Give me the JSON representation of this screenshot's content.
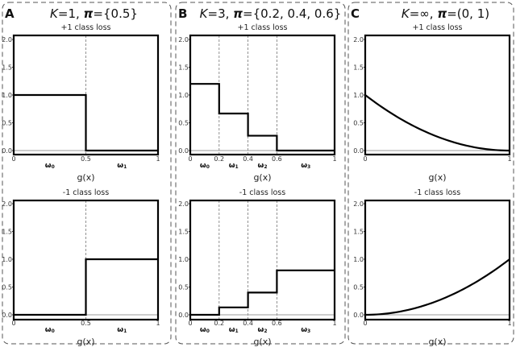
{
  "chart_data": [
    {
      "type": "line",
      "panel_label": "A",
      "title_parts": [
        {
          "t": "K",
          "i": true
        },
        {
          "t": "=1, ",
          "i": false
        },
        {
          "t": "π",
          "i": true,
          "b": true
        },
        {
          "t": "={0.5}",
          "i": false
        }
      ],
      "xlabel": "g(x)",
      "xlim": [
        0,
        1
      ],
      "ylim": [
        0,
        2
      ],
      "yticks": [
        "0.0",
        "0.5",
        "1.0",
        "1.5",
        "2.0"
      ],
      "xticks": [
        {
          "v": 0,
          "l": "0"
        },
        {
          "v": 0.5,
          "l": "0.5"
        },
        {
          "v": 1,
          "l": "1"
        }
      ],
      "thresholds": [
        0.5
      ],
      "omegas": [
        {
          "l": "ω",
          "s": "0",
          "v": 0.25
        },
        {
          "l": "ω",
          "s": "1",
          "v": 0.75
        }
      ],
      "subplots": [
        {
          "title": "+1 class loss",
          "kind": "step",
          "edges": [
            0,
            0.5,
            1
          ],
          "values": [
            1.0,
            0.0
          ]
        },
        {
          "title": "-1 class loss",
          "kind": "step",
          "edges": [
            0,
            0.5,
            1
          ],
          "values": [
            0.0,
            1.0
          ]
        }
      ]
    },
    {
      "type": "line",
      "panel_label": "B",
      "title_parts": [
        {
          "t": "K",
          "i": true
        },
        {
          "t": "=3, ",
          "i": false
        },
        {
          "t": "π",
          "i": true,
          "b": true
        },
        {
          "t": "={0.2, 0.4, 0.6}",
          "i": false
        }
      ],
      "xlabel": "g(x)",
      "xlim": [
        0,
        1
      ],
      "ylim": [
        0,
        2
      ],
      "yticks": [
        "0.0",
        "0.5",
        "1.0",
        "1.5",
        "2.0"
      ],
      "xticks": [
        {
          "v": 0,
          "l": "0"
        },
        {
          "v": 0.2,
          "l": "0.2"
        },
        {
          "v": 0.4,
          "l": "0.4"
        },
        {
          "v": 0.6,
          "l": "0.6"
        },
        {
          "v": 1,
          "l": "1"
        }
      ],
      "thresholds": [
        0.2,
        0.4,
        0.6
      ],
      "omegas": [
        {
          "l": "ω",
          "s": "0",
          "v": 0.1
        },
        {
          "l": "ω",
          "s": "1",
          "v": 0.3
        },
        {
          "l": "ω",
          "s": "2",
          "v": 0.5
        },
        {
          "l": "ω",
          "s": "3",
          "v": 0.8
        }
      ],
      "subplots": [
        {
          "title": "+1 class loss",
          "kind": "step",
          "edges": [
            0,
            0.2,
            0.4,
            0.6,
            1
          ],
          "values": [
            1.2,
            0.667,
            0.267,
            0.0
          ]
        },
        {
          "title": "-1 class loss",
          "kind": "step",
          "edges": [
            0,
            0.2,
            0.4,
            0.6,
            1
          ],
          "values": [
            0.0,
            0.133,
            0.4,
            0.8
          ]
        }
      ]
    },
    {
      "type": "line",
      "panel_label": "C",
      "title_parts": [
        {
          "t": "K",
          "i": true
        },
        {
          "t": "=∞, ",
          "i": false
        },
        {
          "t": "π",
          "i": true,
          "b": true
        },
        {
          "t": "=(0, 1)",
          "i": false
        }
      ],
      "xlabel": "g(x)",
      "xlim": [
        0,
        1
      ],
      "ylim": [
        0,
        2
      ],
      "yticks": [
        "0.0",
        "0.5",
        "1.0",
        "1.5",
        "2.0"
      ],
      "xticks": [
        {
          "v": 0,
          "l": "0"
        },
        {
          "v": 1,
          "l": "1"
        }
      ],
      "thresholds": [],
      "omegas": [],
      "subplots": [
        {
          "title": "+1 class loss",
          "kind": "curve",
          "x": [
            0,
            0.1,
            0.2,
            0.3,
            0.4,
            0.5,
            0.6,
            0.7,
            0.8,
            0.9,
            1
          ],
          "y": [
            1,
            0.81,
            0.64,
            0.49,
            0.36,
            0.25,
            0.16,
            0.09,
            0.04,
            0.01,
            0
          ]
        },
        {
          "title": "-1 class loss",
          "kind": "curve",
          "x": [
            0,
            0.1,
            0.2,
            0.3,
            0.4,
            0.5,
            0.6,
            0.7,
            0.8,
            0.9,
            1
          ],
          "y": [
            0,
            0.01,
            0.04,
            0.09,
            0.16,
            0.25,
            0.36,
            0.49,
            0.64,
            0.81,
            1
          ]
        }
      ]
    }
  ]
}
